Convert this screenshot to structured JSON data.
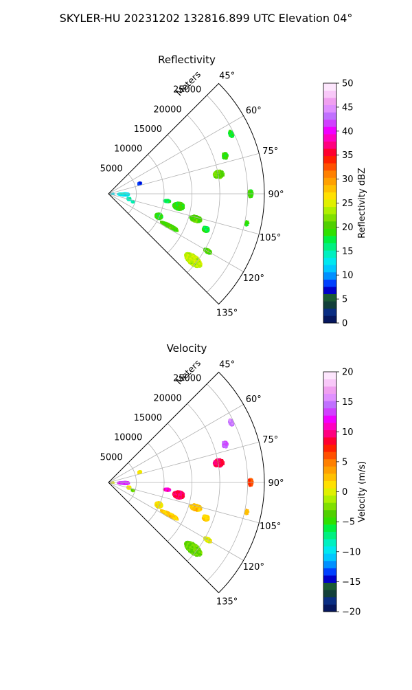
{
  "figure": {
    "title": "SKYLER-HU  20231202  132816.899 UTC Elevation 04°"
  },
  "chart_data": [
    {
      "type": "heatmap",
      "title": "Reflectivity",
      "radial_label": "Meters",
      "radial_ticks": [
        5000,
        10000,
        15000,
        20000,
        25000
      ],
      "radial_range": [
        0,
        28000
      ],
      "angle_range": [
        45,
        135
      ],
      "angle_ticks": [
        45,
        60,
        75,
        90,
        105,
        120,
        135
      ],
      "angle_tick_labels": [
        "45°",
        "60°",
        "75°",
        "90°",
        "105°",
        "120°",
        "135°"
      ],
      "grid": true,
      "colorbar": {
        "label": "Reflectivity dBZ",
        "range": [
          0,
          50
        ],
        "ticks": [
          0,
          5,
          10,
          15,
          20,
          25,
          30,
          35,
          40,
          45,
          50
        ],
        "tick_labels": [
          "0",
          "5",
          "10",
          "15",
          "20",
          "25",
          "30",
          "35",
          "40",
          "45",
          "50"
        ],
        "colors": [
          "#06175e",
          "#0a2d82",
          "#123f3a",
          "#1b5a34",
          "#0000c8",
          "#0040ff",
          "#0090ff",
          "#00c8ff",
          "#00e8f0",
          "#00f0c0",
          "#00f080",
          "#00f040",
          "#30e000",
          "#50d000",
          "#80e000",
          "#b0f000",
          "#e0f000",
          "#ffe000",
          "#ffc000",
          "#ffa000",
          "#ff8000",
          "#ff5000",
          "#ff2000",
          "#ff0030",
          "#ff0080",
          "#ff00c0",
          "#f000ff",
          "#d040ff",
          "#c070ff",
          "#e090ff",
          "#f0a0f0",
          "#f8c8f8",
          "#fde6fd"
        ]
      },
      "echoes": [
        {
          "az": 93,
          "r": 500,
          "dr": 900,
          "daz": 6,
          "value": 12
        },
        {
          "az": 92,
          "r": 2700,
          "dr": 2000,
          "daz": 9,
          "value": 13
        },
        {
          "az": 72,
          "r": 5900,
          "dr": 600,
          "daz": 4,
          "value": 8
        },
        {
          "az": 104,
          "r": 3800,
          "dr": 600,
          "daz": 7,
          "value": 14
        },
        {
          "az": 108,
          "r": 4600,
          "dr": 500,
          "daz": 4,
          "value": 15
        },
        {
          "az": 97,
          "r": 10600,
          "dr": 1200,
          "daz": 2.5,
          "value": 17
        },
        {
          "az": 100,
          "r": 12800,
          "dr": 2000,
          "daz": 6,
          "value": 19
        },
        {
          "az": 106,
          "r": 16300,
          "dr": 2100,
          "daz": 4,
          "value": 20
        },
        {
          "az": 114,
          "r": 9900,
          "dr": 1300,
          "daz": 6,
          "value": 19
        },
        {
          "az": 118,
          "r": 12400,
          "dr": 3500,
          "daz": 3,
          "value": 20
        },
        {
          "az": 110,
          "r": 18600,
          "dr": 1200,
          "daz": 3,
          "value": 18
        },
        {
          "az": 80,
          "r": 20100,
          "dr": 1900,
          "daz": 4,
          "value": 21
        },
        {
          "az": 72,
          "r": 22000,
          "dr": 1000,
          "daz": 3,
          "value": 19
        },
        {
          "az": 64,
          "r": 24500,
          "dr": 800,
          "daz": 3,
          "value": 18
        },
        {
          "az": 90,
          "r": 25500,
          "dr": 900,
          "daz": 3,
          "value": 19
        },
        {
          "az": 102,
          "r": 25400,
          "dr": 600,
          "daz": 2,
          "value": 19
        },
        {
          "az": 128,
          "r": 19300,
          "dr": 3600,
          "daz": 5,
          "value": 24
        },
        {
          "az": 120,
          "r": 20600,
          "dr": 1500,
          "daz": 2,
          "value": 20
        }
      ]
    },
    {
      "type": "heatmap",
      "title": "Velocity",
      "radial_label": "Meters",
      "radial_ticks": [
        5000,
        10000,
        15000,
        20000,
        25000
      ],
      "radial_range": [
        0,
        28000
      ],
      "angle_range": [
        45,
        135
      ],
      "angle_ticks": [
        45,
        60,
        75,
        90,
        105,
        120,
        135
      ],
      "angle_tick_labels": [
        "45°",
        "60°",
        "75°",
        "90°",
        "105°",
        "120°",
        "135°"
      ],
      "grid": true,
      "colorbar": {
        "label": "Velocity (m/s)",
        "range": [
          -20,
          20
        ],
        "ticks": [
          -20,
          -15,
          -10,
          -5,
          0,
          5,
          10,
          15,
          20
        ],
        "tick_labels": [
          "−20",
          "−15",
          "−10",
          "−5",
          "0",
          "5",
          "10",
          "15",
          "20"
        ],
        "colors": [
          "#06175e",
          "#0a2d82",
          "#123f3a",
          "#1b5a34",
          "#0000c8",
          "#0040ff",
          "#0090ff",
          "#00c8ff",
          "#00e8f0",
          "#00f0c0",
          "#00f080",
          "#00f040",
          "#30e000",
          "#50d000",
          "#80e000",
          "#b0f000",
          "#e0f000",
          "#ffe000",
          "#ffc000",
          "#ffa000",
          "#ff8000",
          "#ff5000",
          "#ff2000",
          "#ff0030",
          "#ff0080",
          "#ff00c0",
          "#f000ff",
          "#d040ff",
          "#c070ff",
          "#e090ff",
          "#f0a0f0",
          "#f8c8f8",
          "#fde6fd"
        ]
      },
      "echoes": [
        {
          "az": 93,
          "r": 500,
          "dr": 900,
          "daz": 6,
          "value": 0
        },
        {
          "az": 92,
          "r": 2700,
          "dr": 2000,
          "daz": 9,
          "value": 13
        },
        {
          "az": 72,
          "r": 5900,
          "dr": 600,
          "daz": 4,
          "value": 1
        },
        {
          "az": 104,
          "r": 3800,
          "dr": 600,
          "daz": 7,
          "value": 0
        },
        {
          "az": 108,
          "r": 4600,
          "dr": 500,
          "daz": 4,
          "value": -3
        },
        {
          "az": 97,
          "r": 10600,
          "dr": 1200,
          "daz": 2.5,
          "value": 11
        },
        {
          "az": 100,
          "r": 12800,
          "dr": 2000,
          "daz": 6,
          "value": 9
        },
        {
          "az": 106,
          "r": 16300,
          "dr": 2100,
          "daz": 4,
          "value": 2
        },
        {
          "az": 114,
          "r": 9900,
          "dr": 1300,
          "daz": 6,
          "value": 1
        },
        {
          "az": 118,
          "r": 12400,
          "dr": 3500,
          "daz": 3,
          "value": 2
        },
        {
          "az": 110,
          "r": 18600,
          "dr": 1200,
          "daz": 3,
          "value": 2
        },
        {
          "az": 80,
          "r": 20100,
          "dr": 1900,
          "daz": 4,
          "value": 9
        },
        {
          "az": 72,
          "r": 22000,
          "dr": 1000,
          "daz": 3,
          "value": 14
        },
        {
          "az": 64,
          "r": 24500,
          "dr": 800,
          "daz": 3,
          "value": 15
        },
        {
          "az": 90,
          "r": 25500,
          "dr": 900,
          "daz": 3,
          "value": 6
        },
        {
          "az": 102,
          "r": 25400,
          "dr": 600,
          "daz": 2,
          "value": 3
        },
        {
          "az": 128,
          "r": 19300,
          "dr": 3600,
          "daz": 5,
          "value": -3
        },
        {
          "az": 120,
          "r": 20600,
          "dr": 1500,
          "daz": 2,
          "value": 0
        }
      ]
    }
  ]
}
